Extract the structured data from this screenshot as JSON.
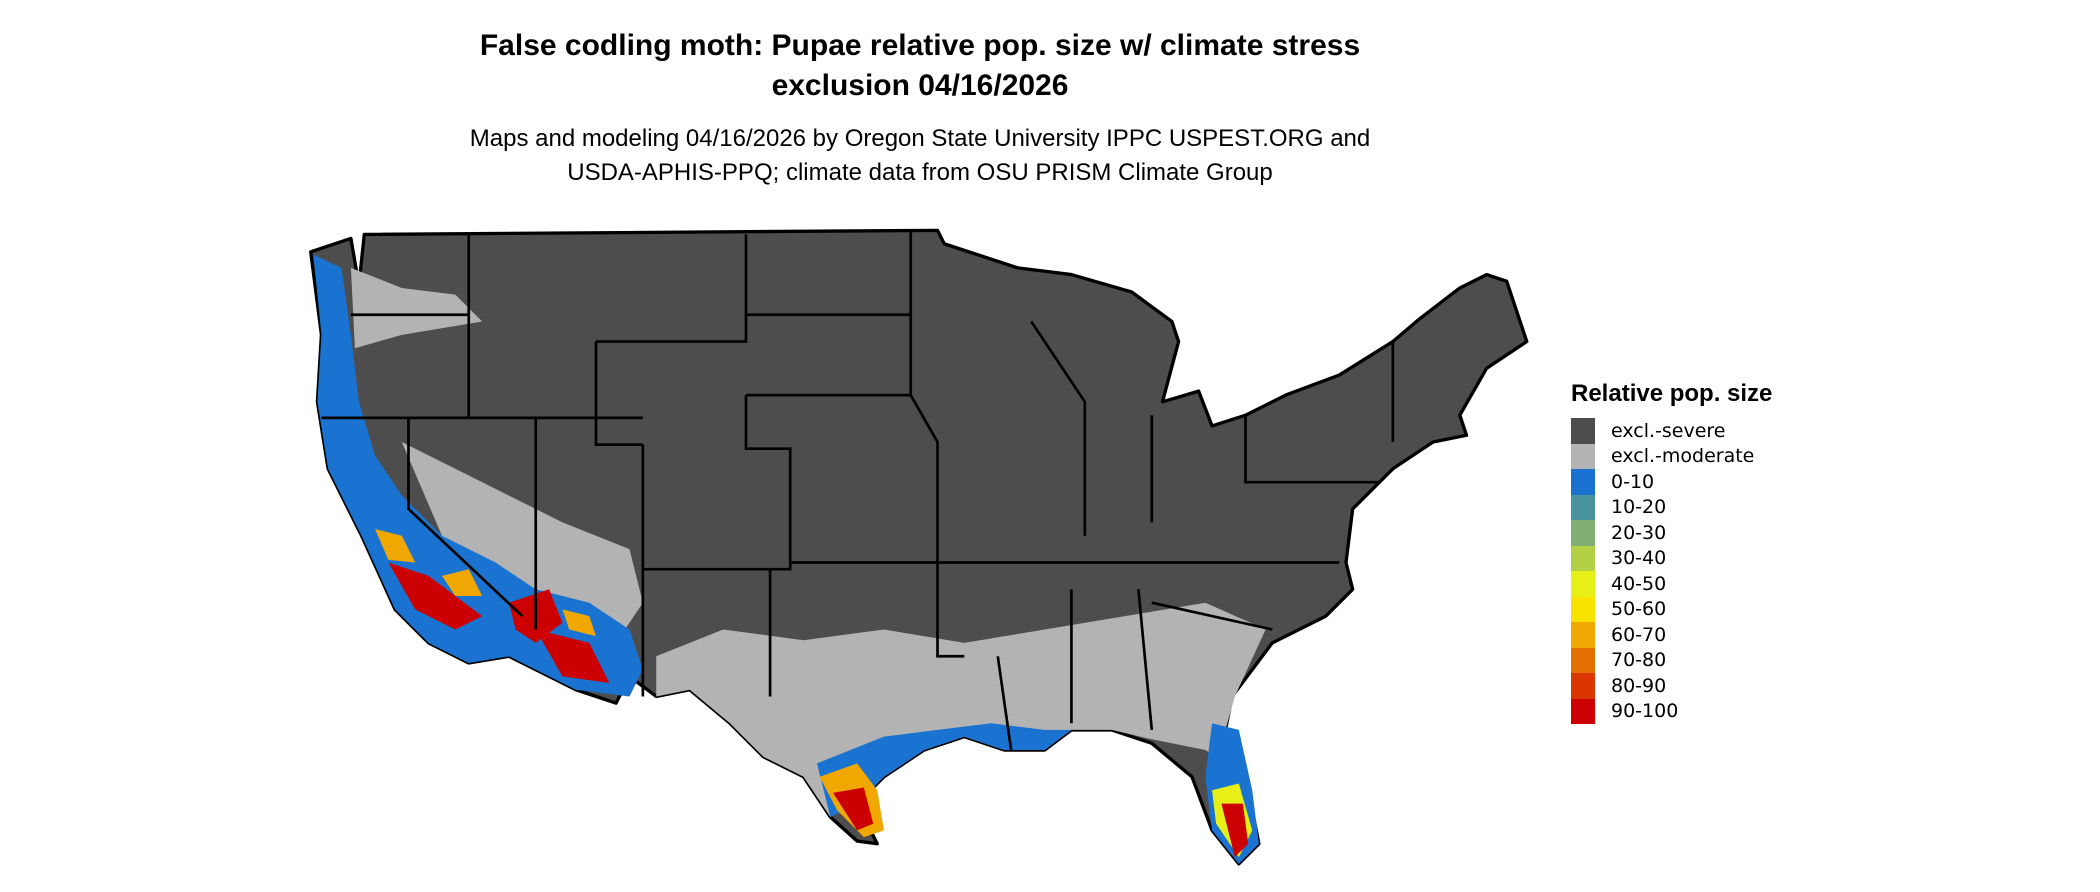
{
  "title": {
    "line1": "False codling moth: Pupae relative pop. size w/ climate stress",
    "line2": "exclusion 04/16/2026"
  },
  "subtitle": {
    "line1": "Maps and modeling 04/16/2026 by Oregon State University IPPC USPEST.ORG and",
    "line2": "USDA-APHIS-PPQ; climate data from OSU PRISM Climate Group"
  },
  "map": {
    "region": "Contiguous United States",
    "colors": {
      "excl_severe": "#4d4d4d",
      "excl_moderate": "#b3b3b3",
      "border": "#000000"
    }
  },
  "legend": {
    "title": "Relative pop. size",
    "items": [
      {
        "label": "excl.-severe",
        "color": "#4d4d4d"
      },
      {
        "label": "excl.-moderate",
        "color": "#b3b3b3"
      },
      {
        "label": "0-10",
        "color": "#1a73d0"
      },
      {
        "label": "10-20",
        "color": "#4a939c"
      },
      {
        "label": "20-30",
        "color": "#7faf72"
      },
      {
        "label": "30-40",
        "color": "#b3d044"
      },
      {
        "label": "40-50",
        "color": "#e6f016"
      },
      {
        "label": "50-60",
        "color": "#f7e200"
      },
      {
        "label": "60-70",
        "color": "#f0a800"
      },
      {
        "label": "70-80",
        "color": "#e37000"
      },
      {
        "label": "80-90",
        "color": "#da3700"
      },
      {
        "label": "90-100",
        "color": "#cc0000"
      }
    ]
  }
}
